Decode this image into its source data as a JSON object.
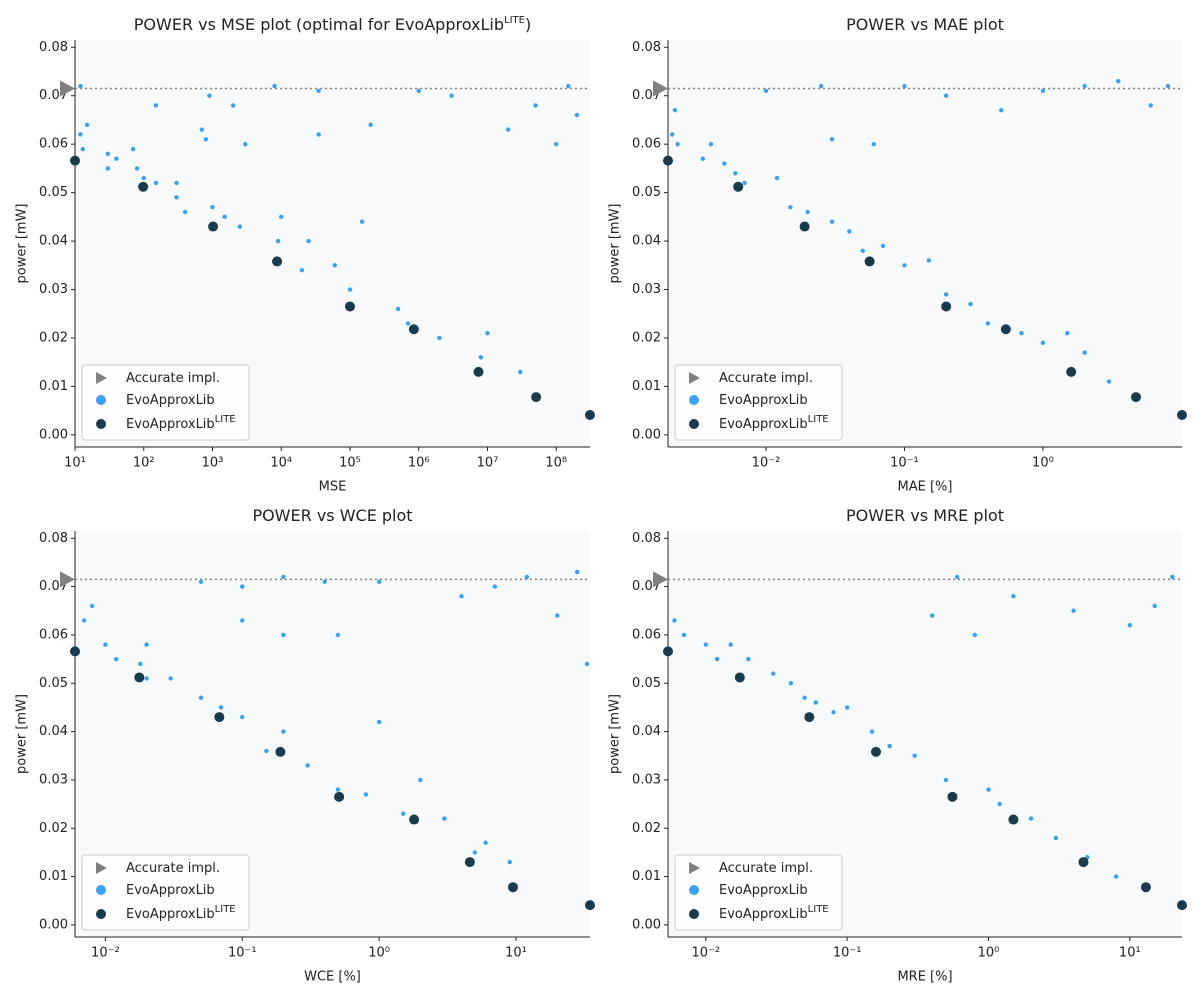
{
  "chart_data": [
    {
      "type": "scatter",
      "title": [
        {
          "text": "POWER vs MSE plot (optimal for EvoApproxLib"
        },
        {
          "text": "LITE",
          "sup": true
        },
        {
          "text": ")"
        }
      ],
      "xlabel": "MSE",
      "ylabel": "power [mW]",
      "xscale": "log",
      "legend": "lower left",
      "xlim": [
        10,
        310000000
      ],
      "ylim": [
        -0.0025,
        0.0815
      ],
      "xticks": [
        {
          "value": 10,
          "label": "10¹"
        },
        {
          "value": 100,
          "label": "10²"
        },
        {
          "value": 1000,
          "label": "10³"
        },
        {
          "value": 10000,
          "label": "10⁴"
        },
        {
          "value": 100000,
          "label": "10⁵"
        },
        {
          "value": 1000000,
          "label": "10⁶"
        },
        {
          "value": 10000000,
          "label": "10⁷"
        },
        {
          "value": 100000000,
          "label": "10⁸"
        }
      ],
      "yticks": [
        {
          "value": 0,
          "label": "0.00"
        },
        0.01,
        0.02,
        0.03,
        0.04,
        0.05,
        0.06,
        0.07,
        0.08
      ],
      "series": [
        {
          "name": "Accurate impl.",
          "color": "#808080",
          "values": [
            0.0715
          ]
        },
        {
          "name": "EvoApproxLib",
          "color": "#3aa0f0",
          "x": [
            12,
            13,
            15,
            12,
            30,
            30,
            40,
            70,
            80,
            100,
            150,
            150,
            300,
            300,
            400,
            700,
            800,
            900,
            1000,
            1500,
            2000,
            2500,
            3000,
            8000,
            9000,
            10000,
            20000,
            25000,
            35000,
            35000,
            60000,
            100000,
            150000,
            200000,
            500000,
            700000,
            1000000,
            2000000,
            3000000,
            8000000,
            10000000,
            20000000,
            30000000,
            50000000,
            100000000,
            150000000,
            200000000
          ],
          "values": [
            0.062,
            0.059,
            0.064,
            0.072,
            0.058,
            0.055,
            0.057,
            0.059,
            0.055,
            0.053,
            0.052,
            0.068,
            0.052,
            0.049,
            0.046,
            0.063,
            0.061,
            0.07,
            0.047,
            0.045,
            0.068,
            0.043,
            0.06,
            0.072,
            0.04,
            0.045,
            0.034,
            0.04,
            0.062,
            0.071,
            0.035,
            0.03,
            0.044,
            0.064,
            0.026,
            0.023,
            0.071,
            0.02,
            0.07,
            0.016,
            0.021,
            0.063,
            0.013,
            0.068,
            0.06,
            0.072,
            0.066
          ]
        },
        {
          "name": "EvoApproxLib",
          "name_sup": "LITE",
          "color": "#1b3a4b",
          "x": [
            10,
            98,
            1020,
            8700,
            100000,
            850000,
            7400000,
            51000000,
            310000000
          ],
          "values": [
            0.0566,
            0.0512,
            0.043,
            0.0358,
            0.0265,
            0.0218,
            0.013,
            0.0078,
            0.0041
          ]
        }
      ]
    },
    {
      "type": "scatter",
      "title": [
        {
          "text": "POWER vs MAE plot"
        }
      ],
      "xlabel": "MAE [%]",
      "ylabel": "power [mW]",
      "xscale": "log",
      "legend": "lower left",
      "xlim": [
        0.00196,
        10.1
      ],
      "ylim": [
        -0.0025,
        0.0815
      ],
      "xticks": [
        {
          "value": 0.01,
          "label": "10⁻²"
        },
        {
          "value": 0.1,
          "label": "10⁻¹"
        },
        {
          "value": 1,
          "label": "10⁰"
        }
      ],
      "yticks": [
        {
          "value": 0,
          "label": "0.00"
        },
        0.01,
        0.02,
        0.03,
        0.04,
        0.05,
        0.06,
        0.07,
        0.08
      ],
      "series": [
        {
          "name": "Accurate impl.",
          "color": "#808080",
          "values": [
            0.0715
          ]
        },
        {
          "name": "EvoApproxLib",
          "color": "#3aa0f0",
          "x": [
            0.0021,
            0.0023,
            0.0022,
            0.0035,
            0.004,
            0.005,
            0.006,
            0.007,
            0.01,
            0.012,
            0.015,
            0.02,
            0.025,
            0.03,
            0.03,
            0.04,
            0.05,
            0.06,
            0.07,
            0.1,
            0.1,
            0.15,
            0.2,
            0.2,
            0.3,
            0.4,
            0.5,
            0.7,
            1,
            1,
            1.5,
            2,
            2,
            3,
            3.5,
            6,
            8
          ],
          "values": [
            0.062,
            0.06,
            0.067,
            0.057,
            0.06,
            0.056,
            0.054,
            0.052,
            0.071,
            0.053,
            0.047,
            0.046,
            0.072,
            0.061,
            0.044,
            0.042,
            0.038,
            0.06,
            0.039,
            0.035,
            0.072,
            0.036,
            0.029,
            0.07,
            0.027,
            0.023,
            0.067,
            0.021,
            0.019,
            0.071,
            0.021,
            0.017,
            0.072,
            0.011,
            0.073,
            0.068,
            0.072
          ]
        },
        {
          "name": "EvoApproxLib",
          "name_sup": "LITE",
          "color": "#1b3a4b",
          "x": [
            0.00196,
            0.0063,
            0.019,
            0.056,
            0.2,
            0.54,
            1.6,
            4.7,
            10.1
          ],
          "values": [
            0.0566,
            0.0512,
            0.043,
            0.0358,
            0.0265,
            0.0218,
            0.013,
            0.0078,
            0.0041
          ]
        }
      ]
    },
    {
      "type": "scatter",
      "title": [
        {
          "text": "POWER vs WCE plot"
        }
      ],
      "xlabel": "WCE [%]",
      "ylabel": "power [mW]",
      "xscale": "log",
      "legend": "lower left",
      "xlim": [
        0.006,
        34.7
      ],
      "ylim": [
        -0.0025,
        0.0815
      ],
      "xticks": [
        {
          "value": 0.01,
          "label": "10⁻²"
        },
        {
          "value": 0.1,
          "label": "10⁻¹"
        },
        {
          "value": 1,
          "label": "10⁰"
        },
        {
          "value": 10,
          "label": "10¹"
        }
      ],
      "yticks": [
        {
          "value": 0,
          "label": "0.00"
        },
        0.01,
        0.02,
        0.03,
        0.04,
        0.05,
        0.06,
        0.07,
        0.08
      ],
      "series": [
        {
          "name": "Accurate impl.",
          "color": "#808080",
          "values": [
            0.0715
          ]
        },
        {
          "name": "EvoApproxLib",
          "color": "#3aa0f0",
          "x": [
            0.007,
            0.008,
            0.01,
            0.012,
            0.018,
            0.02,
            0.02,
            0.03,
            0.05,
            0.05,
            0.07,
            0.1,
            0.1,
            0.1,
            0.15,
            0.2,
            0.2,
            0.2,
            0.3,
            0.4,
            0.5,
            0.5,
            0.8,
            1,
            1,
            1.5,
            2,
            3,
            4,
            5,
            6,
            7,
            9,
            12,
            20,
            28,
            33
          ],
          "values": [
            0.063,
            0.066,
            0.058,
            0.055,
            0.054,
            0.058,
            0.051,
            0.051,
            0.047,
            0.071,
            0.045,
            0.043,
            0.063,
            0.07,
            0.036,
            0.04,
            0.06,
            0.072,
            0.033,
            0.071,
            0.028,
            0.06,
            0.027,
            0.042,
            0.071,
            0.023,
            0.03,
            0.022,
            0.068,
            0.015,
            0.017,
            0.07,
            0.013,
            0.072,
            0.064,
            0.073,
            0.054
          ]
        },
        {
          "name": "EvoApproxLib",
          "name_sup": "LITE",
          "color": "#1b3a4b",
          "x": [
            0.006,
            0.0177,
            0.068,
            0.19,
            0.51,
            1.8,
            4.6,
            9.5,
            34.7
          ],
          "values": [
            0.0566,
            0.0512,
            0.043,
            0.0358,
            0.0265,
            0.0218,
            0.013,
            0.0078,
            0.0041
          ]
        }
      ]
    },
    {
      "type": "scatter",
      "title": [
        {
          "text": "POWER vs MRE plot"
        }
      ],
      "xlabel": "MRE [%]",
      "ylabel": "power [mW]",
      "xscale": "log",
      "legend": "lower left",
      "xlim": [
        0.0054,
        23.4
      ],
      "ylim": [
        -0.0025,
        0.0815
      ],
      "xticks": [
        {
          "value": 0.01,
          "label": "10⁻²"
        },
        {
          "value": 0.1,
          "label": "10⁻¹"
        },
        {
          "value": 1,
          "label": "10⁰"
        },
        {
          "value": 10,
          "label": "10¹"
        }
      ],
      "yticks": [
        {
          "value": 0,
          "label": "0.00"
        },
        0.01,
        0.02,
        0.03,
        0.04,
        0.05,
        0.06,
        0.07,
        0.08
      ],
      "series": [
        {
          "name": "Accurate impl.",
          "color": "#808080",
          "values": [
            0.0715
          ]
        },
        {
          "name": "EvoApproxLib",
          "color": "#3aa0f0",
          "x": [
            0.006,
            0.007,
            0.01,
            0.012,
            0.015,
            0.02,
            0.03,
            0.04,
            0.05,
            0.06,
            0.08,
            0.1,
            0.15,
            0.2,
            0.3,
            0.4,
            0.5,
            0.6,
            0.8,
            1,
            1.2,
            1.5,
            2,
            3,
            4,
            5,
            8,
            10,
            15,
            20
          ],
          "values": [
            0.063,
            0.06,
            0.058,
            0.055,
            0.058,
            0.055,
            0.052,
            0.05,
            0.047,
            0.046,
            0.044,
            0.045,
            0.04,
            0.037,
            0.035,
            0.064,
            0.03,
            0.072,
            0.06,
            0.028,
            0.025,
            0.068,
            0.022,
            0.018,
            0.065,
            0.014,
            0.01,
            0.062,
            0.066,
            0.072
          ]
        },
        {
          "name": "EvoApproxLib",
          "name_sup": "LITE",
          "color": "#1b3a4b",
          "x": [
            0.0054,
            0.0174,
            0.054,
            0.16,
            0.556,
            1.5,
            4.7,
            13,
            23.4
          ],
          "values": [
            0.0566,
            0.0512,
            0.043,
            0.0358,
            0.0265,
            0.0218,
            0.013,
            0.0078,
            0.0041
          ]
        }
      ]
    }
  ]
}
